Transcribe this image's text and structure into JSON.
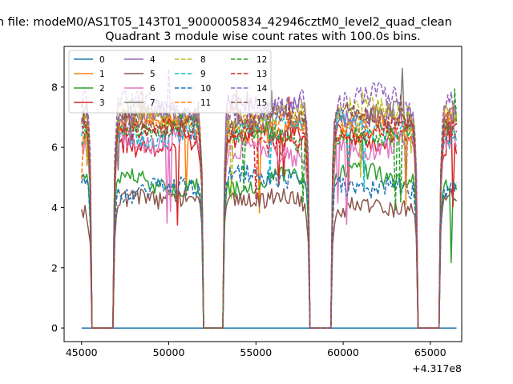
{
  "figure": {
    "suptitle": "n file: modeM0/AS1T05_143T01_9000005834_42946cztM0_level2_quad_clean",
    "background": "#ffffff"
  },
  "chart_data": {
    "type": "line",
    "title": "Quadrant 3 module wise count rates with 100.0s bins.",
    "xlabel": "",
    "ylabel": "",
    "x_offset_label": "+4.317e8",
    "xlim": [
      44000,
      66800
    ],
    "ylim": [
      -0.45,
      9.35
    ],
    "xticks": [
      45000,
      50000,
      55000,
      60000,
      65000
    ],
    "xtick_labels": [
      "45000",
      "50000",
      "55000",
      "60000",
      "65000"
    ],
    "yticks": [
      0,
      2,
      4,
      6,
      8
    ],
    "ytick_labels": [
      "0",
      "2",
      "4",
      "6",
      "8"
    ],
    "grid": false,
    "legend": {
      "placement": "top-left",
      "columns": 4
    },
    "bin_seconds": 100,
    "x_range": [
      45000,
      66500
    ],
    "gaps": [
      [
        45600,
        46800
      ],
      [
        52000,
        53100
      ],
      [
        58100,
        59300
      ],
      [
        64300,
        65500
      ]
    ],
    "series": [
      {
        "name": "0",
        "color": "#1f77b4",
        "dash": "solid",
        "level": 0.0,
        "noise": 0.0
      },
      {
        "name": "1",
        "color": "#ff7f0e",
        "dash": "solid",
        "level": 6.7,
        "noise": 0.35
      },
      {
        "name": "2",
        "color": "#2ca02c",
        "dash": "solid",
        "level": 4.9,
        "noise": 0.3
      },
      {
        "name": "3",
        "color": "#d62728",
        "dash": "solid",
        "level": 6.3,
        "noise": 0.3
      },
      {
        "name": "4",
        "color": "#9467bd",
        "dash": "solid",
        "level": 7.2,
        "noise": 0.35
      },
      {
        "name": "5",
        "color": "#8c564b",
        "dash": "solid",
        "level": 4.2,
        "noise": 0.3
      },
      {
        "name": "6",
        "color": "#e377c2",
        "dash": "solid",
        "level": 6.0,
        "noise": 0.35
      },
      {
        "name": "7",
        "color": "#7f7f7f",
        "dash": "solid",
        "level": 6.9,
        "noise": 0.3
      },
      {
        "name": "8",
        "color": "#bcbd22",
        "dash": "dashed",
        "level": 7.1,
        "noise": 0.35
      },
      {
        "name": "9",
        "color": "#17becf",
        "dash": "dashed",
        "level": 6.6,
        "noise": 0.3
      },
      {
        "name": "10",
        "color": "#1f77b4",
        "dash": "dashed",
        "level": 4.8,
        "noise": 0.3
      },
      {
        "name": "11",
        "color": "#ff7f0e",
        "dash": "dashed",
        "level": 6.8,
        "noise": 0.35
      },
      {
        "name": "12",
        "color": "#2ca02c",
        "dash": "dashed",
        "level": 6.5,
        "noise": 0.3
      },
      {
        "name": "13",
        "color": "#d62728",
        "dash": "dashed",
        "level": 6.4,
        "noise": 0.3
      },
      {
        "name": "14",
        "color": "#9467bd",
        "dash": "dashed",
        "level": 7.4,
        "noise": 0.4
      },
      {
        "name": "15",
        "color": "#8c564b",
        "dash": "dashed",
        "level": 6.9,
        "noise": 0.3
      }
    ]
  }
}
